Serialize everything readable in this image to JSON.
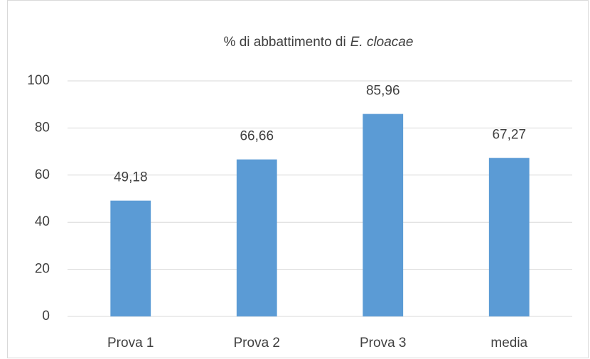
{
  "chart_data": {
    "type": "bar",
    "title": [
      "% di abbattimento di",
      "E. cloacae"
    ],
    "categories": [
      "Prova 1",
      "Prova 2",
      "Prova 3",
      "media"
    ],
    "values": [
      49.18,
      66.66,
      85.96,
      67.27
    ],
    "value_labels": [
      "49,18",
      "66,66",
      "85,96",
      "67,27"
    ],
    "color": "#5b9bd5",
    "ylim": [
      0,
      100
    ],
    "yticks": [
      0,
      20,
      40,
      60,
      80,
      100
    ],
    "grid": true
  }
}
